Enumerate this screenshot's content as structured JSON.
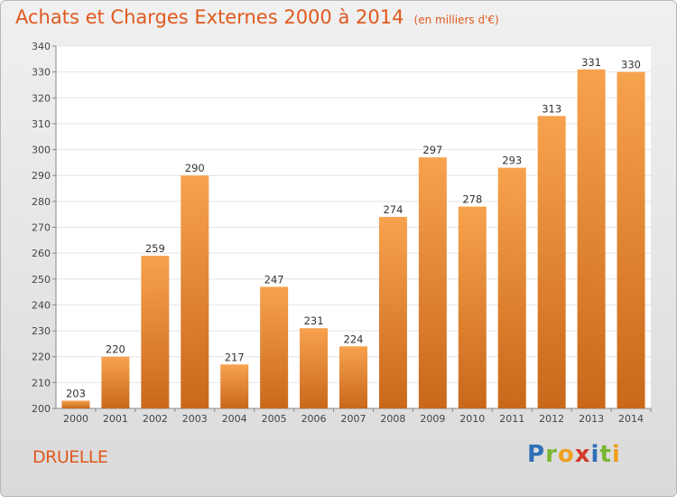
{
  "header": {
    "title": "Achats et Charges Externes 2000 à 2014",
    "unit": "(en milliers d'€)"
  },
  "footer": {
    "commune": "DRUELLE",
    "brand": "Proxiti",
    "brand_letters": [
      {
        "ch": "P",
        "color": "#2f6fb8"
      },
      {
        "ch": "r",
        "color": "#7ab630"
      },
      {
        "ch": "o",
        "color": "#f0a020"
      },
      {
        "ch": "x",
        "color": "#d23a2a"
      },
      {
        "ch": "i",
        "color": "#2f6fb8"
      },
      {
        "ch": "t",
        "color": "#7ab630"
      },
      {
        "ch": "i",
        "color": "#f0a020"
      }
    ]
  },
  "chart_data": {
    "type": "bar",
    "title": "Achats et Charges Externes 2000 à 2014",
    "xlabel": "",
    "ylabel": "",
    "categories": [
      "2000",
      "2001",
      "2002",
      "2003",
      "2004",
      "2005",
      "2006",
      "2007",
      "2008",
      "2009",
      "2010",
      "2011",
      "2012",
      "2013",
      "2014"
    ],
    "values": [
      203,
      220,
      259,
      290,
      217,
      247,
      231,
      224,
      274,
      297,
      278,
      293,
      313,
      331,
      330
    ],
    "ylim": [
      200,
      340
    ],
    "yticks": [
      200,
      210,
      220,
      230,
      240,
      250,
      260,
      270,
      280,
      290,
      300,
      310,
      320,
      330,
      340
    ],
    "grid": true,
    "bar_color_top": "#f7a24e",
    "bar_color_bottom": "#c9681a",
    "plot_background": "#ffffff",
    "grid_color": "#e4e4e4"
  }
}
